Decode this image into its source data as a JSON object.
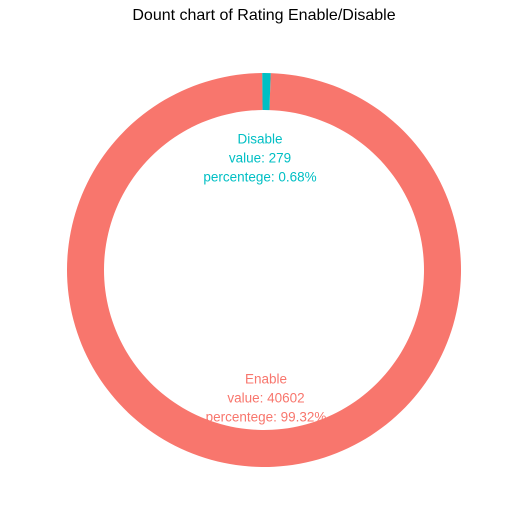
{
  "chart_data": {
    "type": "pie",
    "variant": "donut",
    "title": "Dount chart of Rating Enable/Disable",
    "grid": false,
    "legend": "none",
    "slices": [
      {
        "name": "Disable",
        "value": 279,
        "percent": 0.68,
        "color": "#00BFC4",
        "label_lines": [
          "Disable",
          "value: 279",
          "percentege: 0.68%"
        ]
      },
      {
        "name": "Enable",
        "value": 40602,
        "percent": 99.32,
        "color": "#F8766D",
        "label_lines": [
          "Enable",
          "value: 40602",
          "percentege: 99.32%"
        ]
      }
    ]
  }
}
